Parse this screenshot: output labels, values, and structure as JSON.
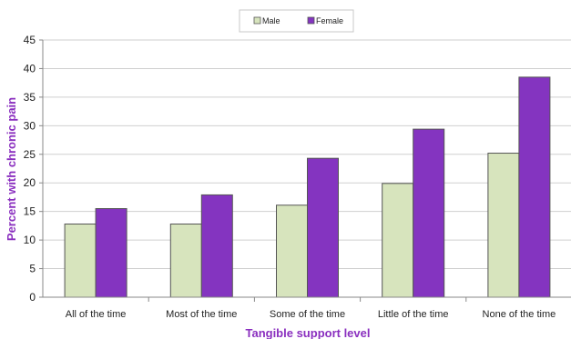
{
  "chart_data": {
    "type": "bar",
    "xlabel": "Tangible support level",
    "ylabel": "Percent with chronic pain",
    "ylim": [
      0,
      45
    ],
    "yticks": [
      0,
      5,
      10,
      15,
      20,
      25,
      30,
      35,
      40,
      45
    ],
    "categories": [
      "All of the time",
      "Most of the time",
      "Some of the time",
      "Little of the time",
      "None of the time"
    ],
    "series": [
      {
        "name": "Male",
        "color": "#d7e4bd",
        "values": [
          12.8,
          12.8,
          16.1,
          19.9,
          25.2
        ]
      },
      {
        "name": "Female",
        "color": "#8434c0",
        "values": [
          15.5,
          17.9,
          24.3,
          29.4,
          38.5
        ]
      }
    ],
    "grid": true,
    "legend": "top-center",
    "label_color": "#8a2fbf"
  }
}
